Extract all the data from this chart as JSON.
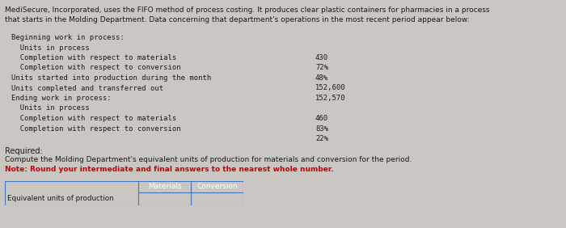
{
  "bg_color": "#cac7c2",
  "header_line1": "MediSecure, Incorporated, uses the FIFO method of process costing. It produces clear plastic containers for pharmacies in a process",
  "header_line2": "that starts in the Molding Department. Data concerning that department's operations in the most recent period appear below:",
  "header_fontsize": 6.5,
  "body_fontsize": 6.4,
  "body_lines": [
    {
      "text": "Beginning work in process:",
      "value": null
    },
    {
      "text": "  Units in process",
      "value": null
    },
    {
      "text": "  Completion with respect to materials",
      "value": "430"
    },
    {
      "text": "  Completion with respect to conversion",
      "value": "72%"
    },
    {
      "text": "Units started into production during the month",
      "value": "48%"
    },
    {
      "text": "Units completed and transferred out",
      "value": "152,600"
    },
    {
      "text": "Ending work in process:",
      "value": "152,570"
    },
    {
      "text": "  Units in process",
      "value": null
    },
    {
      "text": "  Completion with respect to materials",
      "value": "460"
    },
    {
      "text": "  Completion with respect to conversion",
      "value": "83%"
    },
    {
      "text": "",
      "value": "22%"
    }
  ],
  "required_text": "Required:",
  "compute_text": "Compute the Molding Department's equivalent units of production for materials and conversion for the period.",
  "note_text": "Note: Round your intermediate and final answers to the nearest whole number.",
  "text_color": "#1a1a1a",
  "red_color": "#cc0000",
  "table_label": "Equivalent units of production",
  "table_col1": "Materials",
  "table_col2": "Conversion",
  "table_header_bg": "#5b9bd5",
  "table_header_text_color": "#ffffff",
  "table_border_color": "#4472c4",
  "figsize": [
    7.0,
    2.82
  ],
  "dpi": 100
}
